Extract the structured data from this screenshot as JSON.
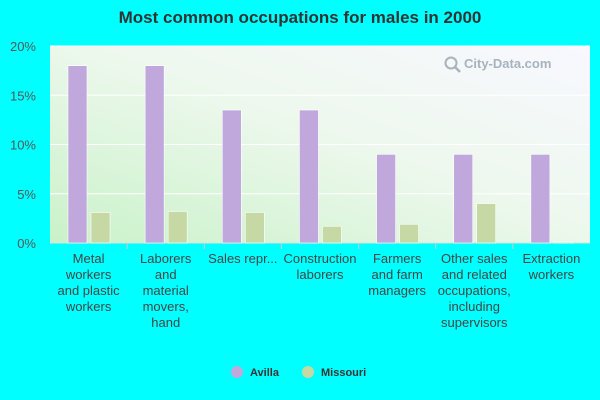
{
  "chart_data": {
    "type": "bar",
    "title": "Most common occupations for males in 2000",
    "categories": [
      [
        "Metal",
        "workers",
        "and plastic",
        "workers"
      ],
      [
        "Laborers",
        "and",
        "material",
        "movers,",
        "hand"
      ],
      [
        "Sales repr..."
      ],
      [
        "Construction",
        "laborers"
      ],
      [
        "Farmers",
        "and farm",
        "managers"
      ],
      [
        "Other sales",
        "and related",
        "occupations,",
        "including",
        "supervisors"
      ],
      [
        "Extraction",
        "workers"
      ]
    ],
    "series": [
      {
        "name": "Avilla",
        "color": "#c0a8dc",
        "values": [
          18.0,
          18.0,
          13.5,
          13.5,
          9.0,
          9.0,
          9.0
        ]
      },
      {
        "name": "Missouri",
        "color": "#c6d8a4",
        "values": [
          3.1,
          3.2,
          3.1,
          1.7,
          1.9,
          4.0,
          0.1
        ]
      }
    ],
    "ylim": [
      0,
      20
    ],
    "yticks": [
      "0%",
      "5%",
      "10%",
      "15%",
      "20%"
    ],
    "ytick_values": [
      0,
      5,
      10,
      15,
      20
    ],
    "legend_position": "bottom-center",
    "watermark": "City-Data.com"
  }
}
